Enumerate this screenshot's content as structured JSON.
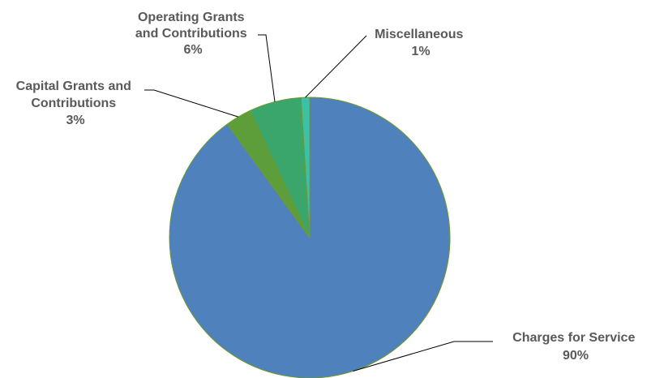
{
  "chart_data": {
    "type": "pie",
    "title": "",
    "slices": [
      {
        "label_lines": [
          "Charges for Service"
        ],
        "pct_text": "90%",
        "value": 90,
        "color": "#4F81BD"
      },
      {
        "label_lines": [
          "Capital Grants and",
          "Contributions"
        ],
        "pct_text": "3%",
        "value": 3,
        "color": "#5E9E3A"
      },
      {
        "label_lines": [
          "Operating Grants",
          "and Contributions"
        ],
        "pct_text": "6%",
        "value": 6,
        "color": "#3BA66B"
      },
      {
        "label_lines": [
          "Miscellaneous"
        ],
        "pct_text": "1%",
        "value": 1,
        "color": "#3DC1A5"
      }
    ],
    "start_angle_deg": 0,
    "direction": "clockwise",
    "slice_border_color": "#6E9A2E",
    "label_color": "#595959"
  }
}
